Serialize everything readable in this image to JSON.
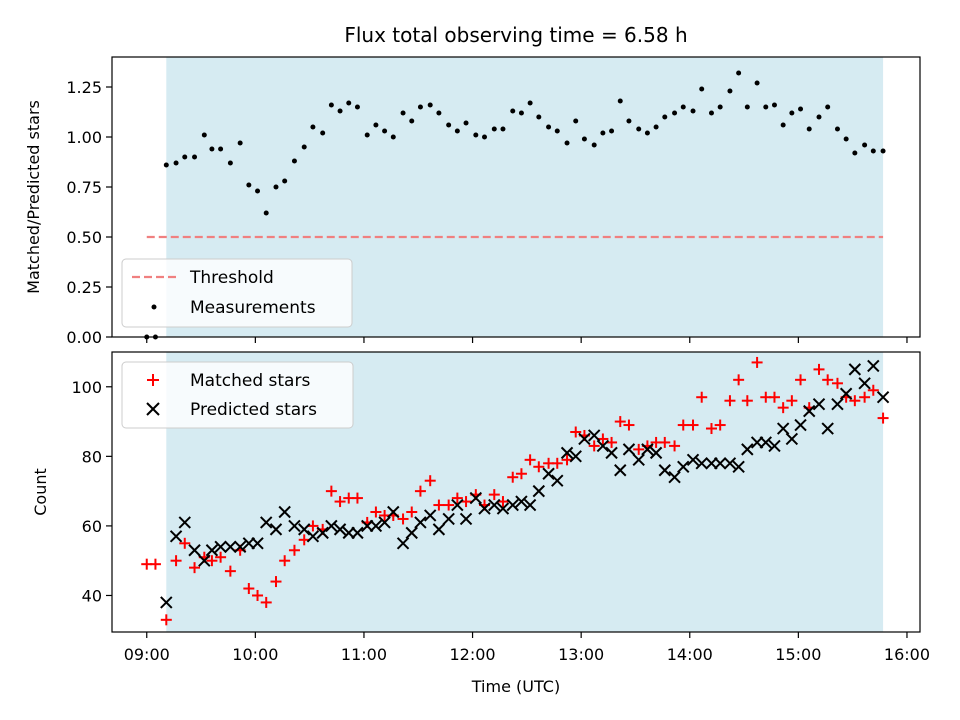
{
  "chart_data": [
    {
      "type": "scatter",
      "title": "Flux total observing time = 6.58 h",
      "xlabel": "",
      "ylabel": "Matched/Predicted stars",
      "ylim": [
        0,
        1.4
      ],
      "yticks": [
        "0.00",
        "0.25",
        "0.50",
        "0.75",
        "1.00",
        "1.25"
      ],
      "xlim": [
        8.68,
        16.12
      ],
      "observing_window": [
        9.18,
        15.78
      ],
      "shade_color": "#add8e6",
      "threshold": {
        "name": "Threshold",
        "value": 0.5,
        "x": [
          9.0,
          15.78
        ],
        "color": "#f08080"
      },
      "series": [
        {
          "name": "Measurements",
          "color": "#000000",
          "points": [
            [
              9.0,
              0.0
            ],
            [
              9.08,
              0.0
            ],
            [
              9.18,
              0.86
            ],
            [
              9.27,
              0.87
            ],
            [
              9.35,
              0.9
            ],
            [
              9.44,
              0.9
            ],
            [
              9.53,
              1.01
            ],
            [
              9.6,
              0.94
            ],
            [
              9.68,
              0.94
            ],
            [
              9.77,
              0.87
            ],
            [
              9.86,
              0.97
            ],
            [
              9.94,
              0.76
            ],
            [
              10.02,
              0.73
            ],
            [
              10.1,
              0.62
            ],
            [
              10.19,
              0.75
            ],
            [
              10.27,
              0.78
            ],
            [
              10.36,
              0.88
            ],
            [
              10.45,
              0.95
            ],
            [
              10.53,
              1.05
            ],
            [
              10.62,
              1.02
            ],
            [
              10.7,
              1.16
            ],
            [
              10.78,
              1.13
            ],
            [
              10.86,
              1.17
            ],
            [
              10.94,
              1.15
            ],
            [
              11.03,
              1.01
            ],
            [
              11.11,
              1.06
            ],
            [
              11.19,
              1.03
            ],
            [
              11.27,
              1.0
            ],
            [
              11.36,
              1.12
            ],
            [
              11.44,
              1.08
            ],
            [
              11.52,
              1.15
            ],
            [
              11.61,
              1.16
            ],
            [
              11.69,
              1.12
            ],
            [
              11.78,
              1.06
            ],
            [
              11.86,
              1.03
            ],
            [
              11.94,
              1.07
            ],
            [
              12.03,
              1.01
            ],
            [
              12.11,
              1.0
            ],
            [
              12.2,
              1.04
            ],
            [
              12.28,
              1.04
            ],
            [
              12.37,
              1.13
            ],
            [
              12.45,
              1.12
            ],
            [
              12.53,
              1.17
            ],
            [
              12.61,
              1.1
            ],
            [
              12.7,
              1.05
            ],
            [
              12.78,
              1.03
            ],
            [
              12.87,
              0.97
            ],
            [
              12.95,
              1.08
            ],
            [
              13.03,
              0.99
            ],
            [
              13.12,
              0.96
            ],
            [
              13.2,
              1.02
            ],
            [
              13.28,
              1.03
            ],
            [
              13.36,
              1.18
            ],
            [
              13.44,
              1.08
            ],
            [
              13.53,
              1.04
            ],
            [
              13.61,
              1.02
            ],
            [
              13.69,
              1.05
            ],
            [
              13.77,
              1.1
            ],
            [
              13.86,
              1.12
            ],
            [
              13.94,
              1.15
            ],
            [
              14.03,
              1.13
            ],
            [
              14.11,
              1.24
            ],
            [
              14.2,
              1.12
            ],
            [
              14.28,
              1.15
            ],
            [
              14.37,
              1.23
            ],
            [
              14.45,
              1.32
            ],
            [
              14.53,
              1.15
            ],
            [
              14.62,
              1.27
            ],
            [
              14.7,
              1.15
            ],
            [
              14.78,
              1.16
            ],
            [
              14.86,
              1.06
            ],
            [
              14.94,
              1.12
            ],
            [
              15.02,
              1.14
            ],
            [
              15.1,
              1.04
            ],
            [
              15.19,
              1.1
            ],
            [
              15.27,
              1.15
            ],
            [
              15.36,
              1.04
            ],
            [
              15.44,
              0.99
            ],
            [
              15.52,
              0.92
            ],
            [
              15.61,
              0.96
            ],
            [
              15.69,
              0.93
            ],
            [
              15.78,
              0.93
            ]
          ]
        }
      ],
      "legend_position": "bottom-left"
    },
    {
      "type": "scatter",
      "title": "",
      "xlabel": "Time (UTC)",
      "ylabel": "Count",
      "ylim": [
        29.5,
        110
      ],
      "yticks": [
        "40",
        "60",
        "80",
        "100"
      ],
      "xlim": [
        8.68,
        16.12
      ],
      "xticks": [
        "09:00",
        "10:00",
        "11:00",
        "12:00",
        "13:00",
        "14:00",
        "15:00",
        "16:00"
      ],
      "observing_window": [
        9.18,
        15.78
      ],
      "shade_color": "#add8e6",
      "series": [
        {
          "name": "Matched stars",
          "marker": "plus",
          "color": "#ff0000",
          "points": [
            [
              9.0,
              49
            ],
            [
              9.08,
              49
            ],
            [
              9.18,
              33
            ],
            [
              9.27,
              50
            ],
            [
              9.35,
              55
            ],
            [
              9.44,
              48
            ],
            [
              9.53,
              51
            ],
            [
              9.6,
              50
            ],
            [
              9.68,
              51
            ],
            [
              9.77,
              47
            ],
            [
              9.86,
              53
            ],
            [
              9.94,
              42
            ],
            [
              10.02,
              40
            ],
            [
              10.1,
              38
            ],
            [
              10.19,
              44
            ],
            [
              10.27,
              50
            ],
            [
              10.36,
              53
            ],
            [
              10.45,
              56
            ],
            [
              10.53,
              60
            ],
            [
              10.62,
              59
            ],
            [
              10.7,
              70
            ],
            [
              10.78,
              67
            ],
            [
              10.86,
              68
            ],
            [
              10.94,
              68
            ],
            [
              11.03,
              61
            ],
            [
              11.11,
              64
            ],
            [
              11.19,
              63
            ],
            [
              11.27,
              63
            ],
            [
              11.36,
              62
            ],
            [
              11.44,
              64
            ],
            [
              11.52,
              70
            ],
            [
              11.61,
              73
            ],
            [
              11.69,
              66
            ],
            [
              11.78,
              66
            ],
            [
              11.86,
              68
            ],
            [
              11.94,
              67
            ],
            [
              12.03,
              69
            ],
            [
              12.11,
              66
            ],
            [
              12.2,
              69
            ],
            [
              12.28,
              67
            ],
            [
              12.37,
              74
            ],
            [
              12.45,
              75
            ],
            [
              12.53,
              79
            ],
            [
              12.61,
              77
            ],
            [
              12.7,
              78
            ],
            [
              12.78,
              78
            ],
            [
              12.87,
              79
            ],
            [
              12.95,
              87
            ],
            [
              13.03,
              86
            ],
            [
              13.12,
              83
            ],
            [
              13.2,
              85
            ],
            [
              13.28,
              84
            ],
            [
              13.36,
              90
            ],
            [
              13.44,
              89
            ],
            [
              13.53,
              82
            ],
            [
              13.61,
              83
            ],
            [
              13.69,
              84
            ],
            [
              13.77,
              84
            ],
            [
              13.86,
              83
            ],
            [
              13.94,
              89
            ],
            [
              14.03,
              89
            ],
            [
              14.11,
              97
            ],
            [
              14.2,
              88
            ],
            [
              14.28,
              89
            ],
            [
              14.37,
              96
            ],
            [
              14.45,
              102
            ],
            [
              14.53,
              96
            ],
            [
              14.62,
              107
            ],
            [
              14.7,
              97
            ],
            [
              14.78,
              97
            ],
            [
              14.86,
              94
            ],
            [
              14.94,
              96
            ],
            [
              15.02,
              102
            ],
            [
              15.1,
              94
            ],
            [
              15.19,
              105
            ],
            [
              15.27,
              102
            ],
            [
              15.36,
              101
            ],
            [
              15.44,
              97
            ],
            [
              15.52,
              96
            ],
            [
              15.61,
              97
            ],
            [
              15.69,
              99
            ],
            [
              15.78,
              91
            ]
          ]
        },
        {
          "name": "Predicted stars",
          "marker": "x",
          "color": "#000000",
          "points": [
            [
              9.18,
              38
            ],
            [
              9.27,
              57
            ],
            [
              9.35,
              61
            ],
            [
              9.44,
              53
            ],
            [
              9.53,
              50
            ],
            [
              9.6,
              53
            ],
            [
              9.68,
              54
            ],
            [
              9.77,
              54
            ],
            [
              9.86,
              54
            ],
            [
              9.94,
              55
            ],
            [
              10.02,
              55
            ],
            [
              10.1,
              61
            ],
            [
              10.19,
              59
            ],
            [
              10.27,
              64
            ],
            [
              10.36,
              60
            ],
            [
              10.45,
              59
            ],
            [
              10.53,
              57
            ],
            [
              10.62,
              58
            ],
            [
              10.7,
              60
            ],
            [
              10.78,
              59
            ],
            [
              10.86,
              58
            ],
            [
              10.94,
              58
            ],
            [
              11.03,
              60
            ],
            [
              11.11,
              60
            ],
            [
              11.19,
              61
            ],
            [
              11.27,
              64
            ],
            [
              11.36,
              55
            ],
            [
              11.44,
              58
            ],
            [
              11.52,
              61
            ],
            [
              11.61,
              63
            ],
            [
              11.69,
              59
            ],
            [
              11.78,
              62
            ],
            [
              11.86,
              66
            ],
            [
              11.94,
              62
            ],
            [
              12.03,
              68
            ],
            [
              12.11,
              65
            ],
            [
              12.2,
              66
            ],
            [
              12.28,
              65
            ],
            [
              12.37,
              66
            ],
            [
              12.45,
              67
            ],
            [
              12.53,
              66
            ],
            [
              12.61,
              70
            ],
            [
              12.7,
              75
            ],
            [
              12.78,
              73
            ],
            [
              12.87,
              81
            ],
            [
              12.95,
              80
            ],
            [
              13.03,
              85
            ],
            [
              13.12,
              86
            ],
            [
              13.2,
              83
            ],
            [
              13.28,
              81
            ],
            [
              13.36,
              76
            ],
            [
              13.44,
              82
            ],
            [
              13.53,
              79
            ],
            [
              13.61,
              82
            ],
            [
              13.69,
              81
            ],
            [
              13.77,
              76
            ],
            [
              13.86,
              74
            ],
            [
              13.94,
              77
            ],
            [
              14.03,
              79
            ],
            [
              14.11,
              78
            ],
            [
              14.2,
              78
            ],
            [
              14.28,
              78
            ],
            [
              14.37,
              78
            ],
            [
              14.45,
              77
            ],
            [
              14.53,
              82
            ],
            [
              14.62,
              84
            ],
            [
              14.7,
              84
            ],
            [
              14.78,
              83
            ],
            [
              14.86,
              88
            ],
            [
              14.94,
              85
            ],
            [
              15.02,
              89
            ],
            [
              15.1,
              93
            ],
            [
              15.19,
              95
            ],
            [
              15.27,
              88
            ],
            [
              15.36,
              95
            ],
            [
              15.44,
              98
            ],
            [
              15.52,
              105
            ],
            [
              15.61,
              101
            ],
            [
              15.69,
              106
            ],
            [
              15.78,
              97
            ]
          ]
        }
      ],
      "legend_position": "top-left"
    }
  ]
}
